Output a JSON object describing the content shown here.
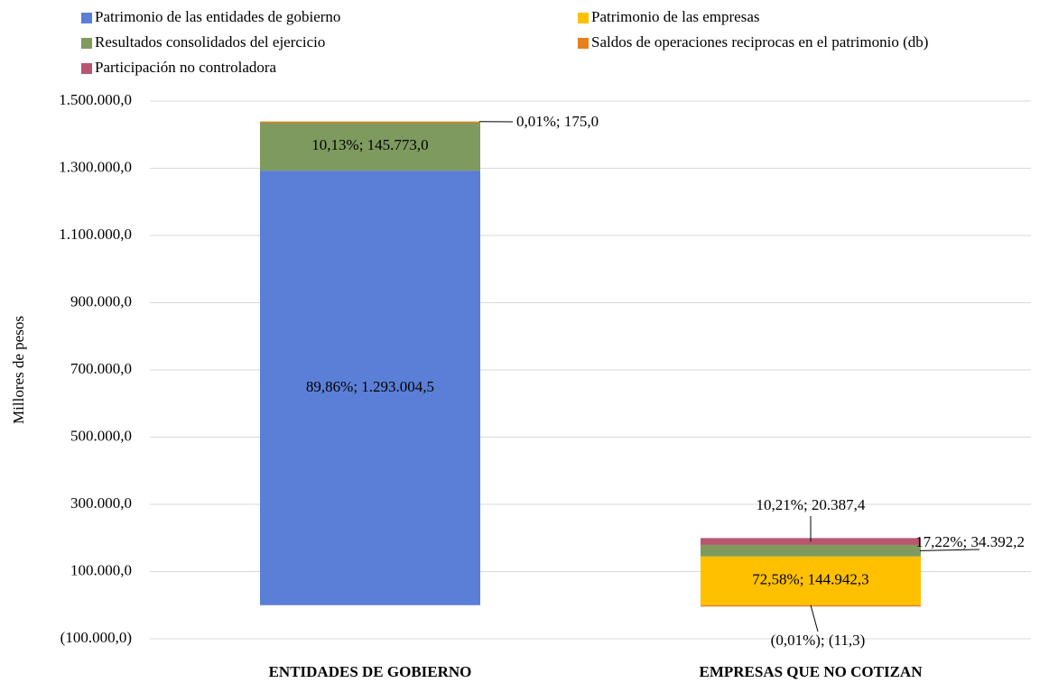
{
  "chart_data": {
    "type": "stacked_bar",
    "y_label": "Millores de pesos",
    "categories": [
      "ENTIDADES DE GOBIERNO",
      "EMPRESAS QUE NO COTIZAN"
    ],
    "series": [
      {
        "name": "Patrimonio de las entidades de gobierno",
        "color": "#5b7fd6",
        "values": [
          1293004.5,
          null
        ],
        "value_labels": [
          "89,86%; 1.293.004,5",
          null
        ]
      },
      {
        "name": "Patrimonio de las empresas",
        "color": "#ffc000",
        "values": [
          null,
          144942.3
        ],
        "value_labels": [
          null,
          "72,58%; 144.942,3"
        ]
      },
      {
        "name": "Resultados consolidados del ejercicio",
        "color": "#7f9a5f",
        "values": [
          145773.0,
          34392.2
        ],
        "value_labels": [
          "10,13%; 145.773,0",
          "17,22%; 34.392,2"
        ]
      },
      {
        "name": "Saldos de operaciones reciprocas en el patrimonio (db)",
        "color": "#e87e1c",
        "values": [
          175.0,
          -11.3
        ],
        "value_labels": [
          "0,01%; 175,0",
          "(0,01%); (11,3)"
        ]
      },
      {
        "name": "Participación no controladora",
        "color": "#b85672",
        "values": [
          null,
          20387.4
        ],
        "value_labels": [
          null,
          "10,21%; 20.387,4"
        ]
      }
    ],
    "ylim": [
      -100000,
      1500000
    ],
    "yticks": [
      {
        "value": -100000,
        "label": "(100.000,0)"
      },
      {
        "value": 100000,
        "label": "100.000,0"
      },
      {
        "value": 300000,
        "label": "300.000,0"
      },
      {
        "value": 500000,
        "label": "500.000,0"
      },
      {
        "value": 700000,
        "label": "700.000,0"
      },
      {
        "value": 900000,
        "label": "900.000,0"
      },
      {
        "value": 1100000,
        "label": "1.100.000,0"
      },
      {
        "value": 1300000,
        "label": "1.300.000,0"
      },
      {
        "value": 1500000,
        "label": "1.500.000,0"
      }
    ],
    "grid": true
  }
}
